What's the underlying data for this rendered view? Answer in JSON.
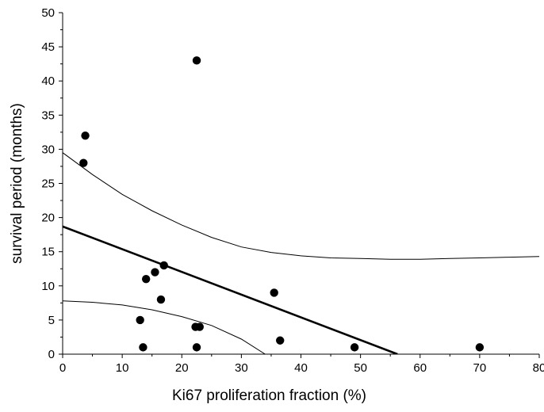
{
  "chart_data": {
    "type": "scatter",
    "title": "",
    "xlabel": "Ki67 proliferation fraction (%)",
    "ylabel": "survival period (months)",
    "xlim": [
      0,
      80
    ],
    "ylim": [
      0,
      50
    ],
    "x_ticks": [
      0,
      10,
      20,
      30,
      40,
      50,
      60,
      70,
      80
    ],
    "y_ticks": [
      0,
      5,
      10,
      15,
      20,
      25,
      30,
      35,
      40,
      45,
      50
    ],
    "grid": false,
    "legend": "none",
    "series": [
      {
        "kind": "points",
        "color": "#000000",
        "points": [
          [
            3.5,
            28
          ],
          [
            3.8,
            32
          ],
          [
            13,
            5
          ],
          [
            13.5,
            1
          ],
          [
            14,
            11
          ],
          [
            15.5,
            12
          ],
          [
            16.5,
            8
          ],
          [
            17,
            13
          ],
          [
            22.3,
            4
          ],
          [
            22.5,
            43
          ],
          [
            22.5,
            1
          ],
          [
            23,
            4
          ],
          [
            35.5,
            9
          ],
          [
            36.5,
            2
          ],
          [
            49,
            1
          ],
          [
            70,
            1
          ]
        ]
      },
      {
        "kind": "regression_line",
        "color": "#000000",
        "points": [
          [
            0,
            18.7
          ],
          [
            56.2,
            0
          ]
        ]
      },
      {
        "kind": "upper_confidence_band",
        "color": "#000000",
        "points": [
          [
            0,
            29.5
          ],
          [
            5,
            26.3
          ],
          [
            10,
            23.4
          ],
          [
            15,
            21.0
          ],
          [
            20,
            18.9
          ],
          [
            25,
            17.1
          ],
          [
            30,
            15.7
          ],
          [
            35,
            14.9
          ],
          [
            40,
            14.4
          ],
          [
            45,
            14.1
          ],
          [
            50,
            14.0
          ],
          [
            55,
            13.9
          ],
          [
            60,
            13.9
          ],
          [
            65,
            14.0
          ],
          [
            70,
            14.1
          ],
          [
            75,
            14.2
          ],
          [
            80,
            14.3
          ]
        ]
      },
      {
        "kind": "lower_confidence_band",
        "color": "#000000",
        "points": [
          [
            0,
            7.8
          ],
          [
            5,
            7.6
          ],
          [
            10,
            7.2
          ],
          [
            15,
            6.5
          ],
          [
            20,
            5.5
          ],
          [
            25,
            4.2
          ],
          [
            30,
            2.2
          ],
          [
            34,
            0
          ]
        ]
      }
    ]
  }
}
